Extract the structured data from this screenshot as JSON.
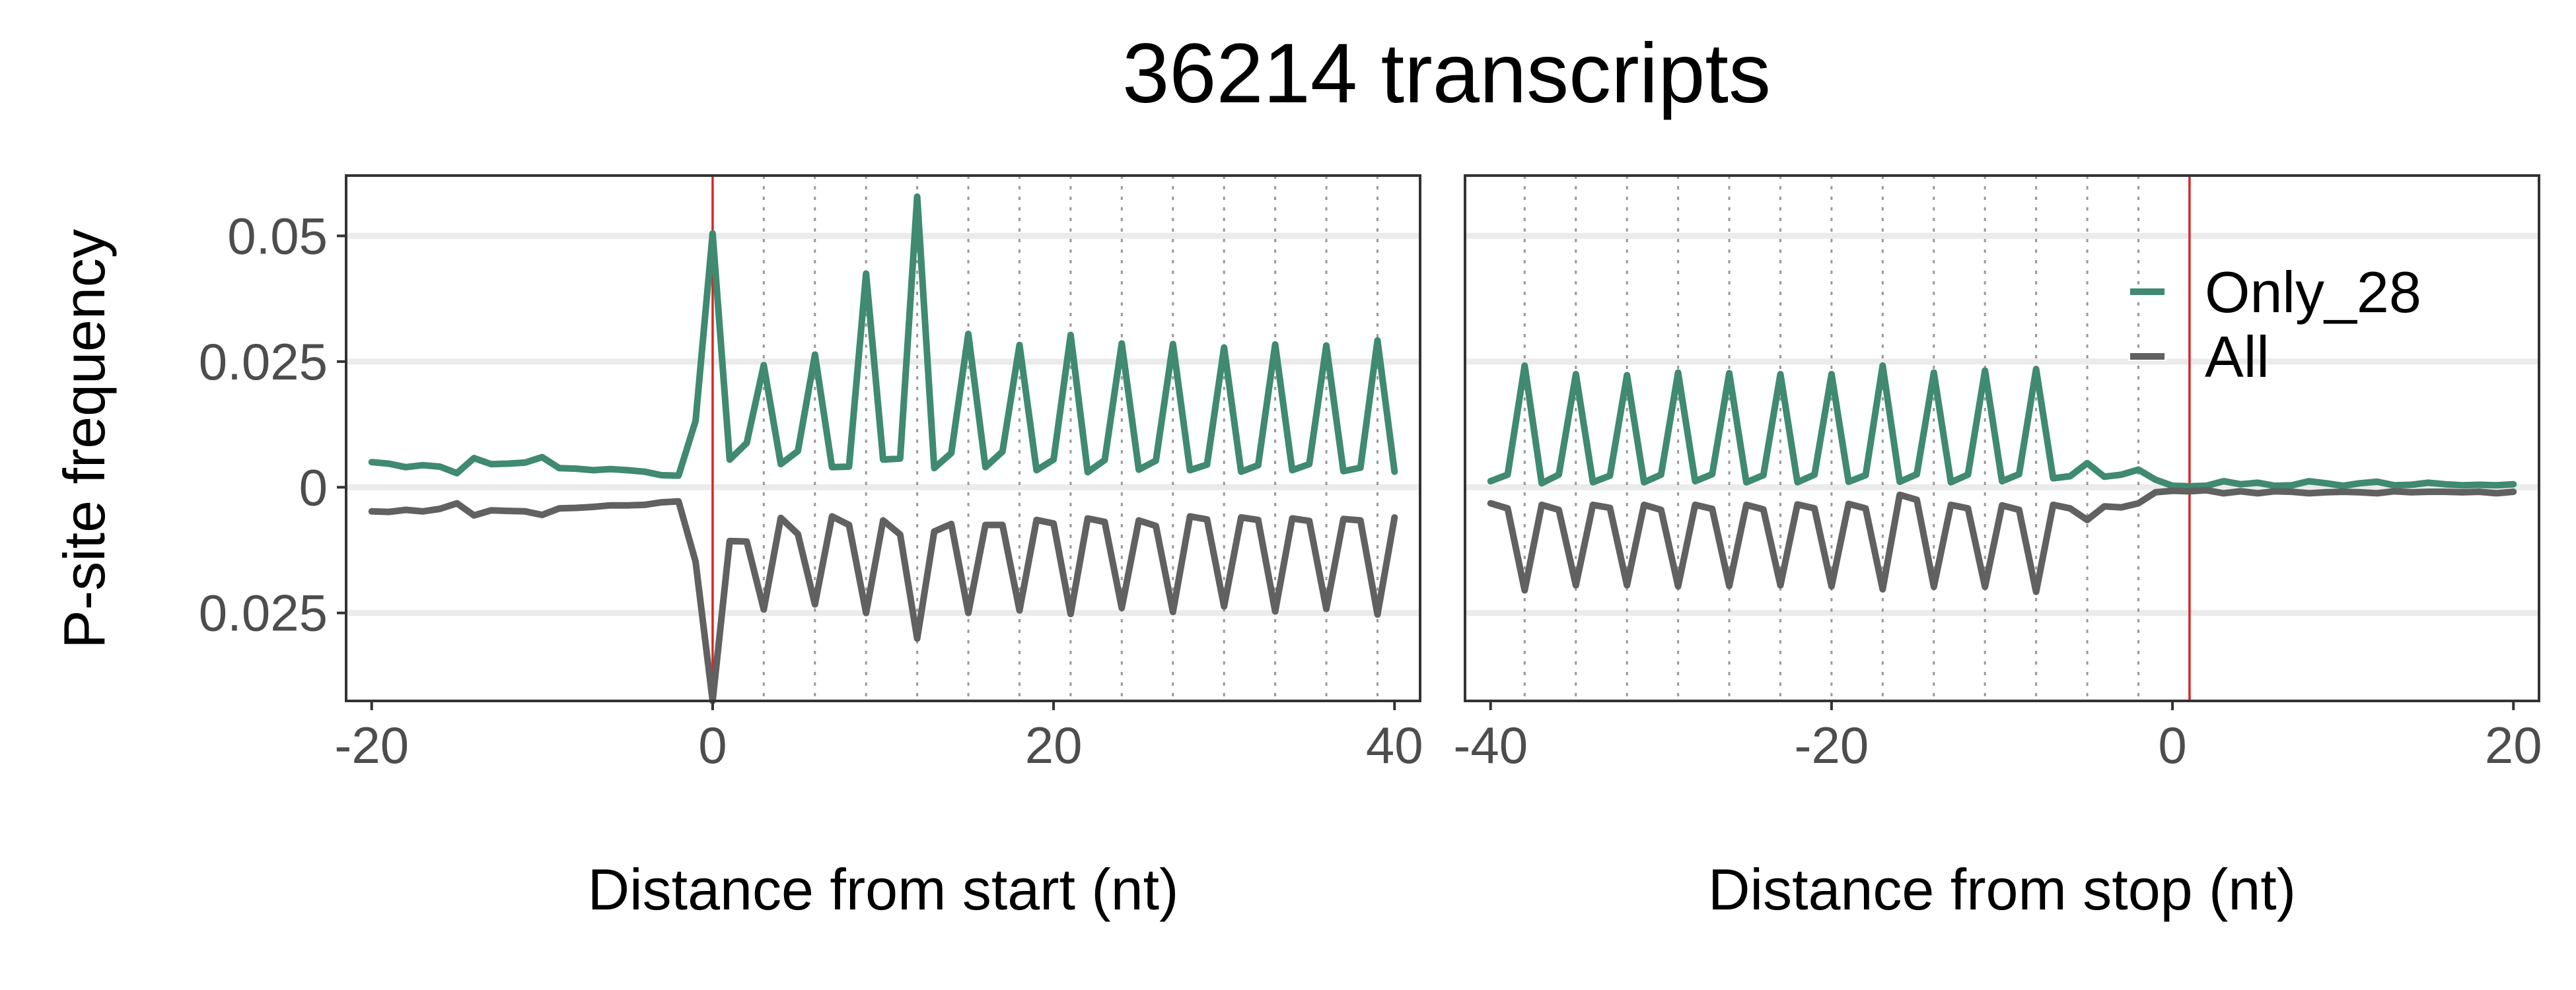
{
  "chart_data": {
    "type": "line",
    "title": "36214 transcripts",
    "ylabel": "P-site frequency",
    "legend": {
      "placement": "top-right",
      "entries": [
        {
          "name": "Only_28",
          "color": "#3f8a70"
        },
        {
          "name": "All",
          "color": "#616161"
        }
      ]
    },
    "grid": true,
    "y": {
      "lim": [
        -0.0425,
        0.062
      ],
      "ticks": [
        0.05,
        0.025,
        0,
        -0.025
      ],
      "tick_labels": [
        "0.05",
        "0.025",
        "0",
        "0.025"
      ]
    },
    "panels": [
      {
        "xlabel": "Distance from start (nt)",
        "xlim": [
          -21.5,
          41.5
        ],
        "xticks": [
          -20,
          0,
          20,
          40
        ],
        "xtick_labels": [
          "-20",
          "0",
          "20",
          "40"
        ],
        "reference_line": 0,
        "codon_lines": [
          3,
          6,
          9,
          12,
          15,
          18,
          21,
          24,
          27,
          30,
          33,
          36,
          39
        ],
        "x": [
          -20,
          -19,
          -18,
          -17,
          -16,
          -15,
          -14,
          -13,
          -12,
          -11,
          -10,
          -9,
          -8,
          -7,
          -6,
          -5,
          -4,
          -3,
          -2,
          -1,
          0,
          1,
          2,
          3,
          4,
          5,
          6,
          7,
          8,
          9,
          10,
          11,
          12,
          13,
          14,
          15,
          16,
          17,
          18,
          19,
          20,
          21,
          22,
          23,
          24,
          25,
          26,
          27,
          28,
          29,
          30,
          31,
          32,
          33,
          34,
          35,
          36,
          37,
          38,
          39,
          40
        ],
        "series": [
          {
            "name": "Only_28",
            "values": [
              0.005,
              0.0047,
              0.004,
              0.0044,
              0.0041,
              0.0028,
              0.0058,
              0.0046,
              0.0047,
              0.0049,
              0.006,
              0.0038,
              0.0037,
              0.0034,
              0.0036,
              0.0034,
              0.0031,
              0.0024,
              0.0023,
              0.0132,
              0.0505,
              0.0055,
              0.0088,
              0.0243,
              0.0046,
              0.0072,
              0.0264,
              0.004,
              0.0041,
              0.0425,
              0.0055,
              0.0057,
              0.0578,
              0.0038,
              0.0068,
              0.0305,
              0.004,
              0.0071,
              0.0283,
              0.0034,
              0.0055,
              0.0303,
              0.003,
              0.0054,
              0.0286,
              0.0035,
              0.0053,
              0.0285,
              0.0034,
              0.0045,
              0.0278,
              0.0031,
              0.0044,
              0.0284,
              0.0034,
              0.0046,
              0.0282,
              0.0032,
              0.0039,
              0.0292,
              0.0031
            ]
          },
          {
            "name": "All",
            "values": [
              -0.0048,
              -0.0049,
              -0.0045,
              -0.0048,
              -0.0043,
              -0.0032,
              -0.0056,
              -0.0046,
              -0.0047,
              -0.0048,
              -0.0055,
              -0.0042,
              -0.0041,
              -0.0039,
              -0.0036,
              -0.0036,
              -0.0035,
              -0.003,
              -0.0028,
              -0.0148,
              -0.0425,
              -0.0107,
              -0.0108,
              -0.0243,
              -0.0061,
              -0.0093,
              -0.0233,
              -0.0058,
              -0.0075,
              -0.025,
              -0.0066,
              -0.0094,
              -0.0301,
              -0.0088,
              -0.0073,
              -0.025,
              -0.0075,
              -0.0075,
              -0.0245,
              -0.0065,
              -0.0072,
              -0.0252,
              -0.0062,
              -0.0069,
              -0.024,
              -0.0066,
              -0.0077,
              -0.0248,
              -0.0058,
              -0.0064,
              -0.0237,
              -0.006,
              -0.0065,
              -0.0247,
              -0.0062,
              -0.0067,
              -0.0242,
              -0.0063,
              -0.0066,
              -0.0253,
              -0.006
            ]
          }
        ]
      },
      {
        "xlabel": "Distance from stop (nt)",
        "xlim": [
          -41.5,
          21.5
        ],
        "xticks": [
          -40,
          -20,
          0,
          20
        ],
        "xtick_labels": [
          "-40",
          "-20",
          "0",
          "20"
        ],
        "reference_line": 1,
        "codon_lines": [
          -38,
          -35,
          -32,
          -29,
          -26,
          -23,
          -20,
          -17,
          -14,
          -11,
          -8,
          -5,
          -2
        ],
        "x": [
          -40,
          -39,
          -38,
          -37,
          -36,
          -35,
          -34,
          -33,
          -32,
          -31,
          -30,
          -29,
          -28,
          -27,
          -26,
          -25,
          -24,
          -23,
          -22,
          -21,
          -20,
          -19,
          -18,
          -17,
          -16,
          -15,
          -14,
          -13,
          -12,
          -11,
          -10,
          -9,
          -8,
          -7,
          -6,
          -5,
          -4,
          -3,
          -2,
          -1,
          0,
          1,
          2,
          3,
          4,
          5,
          6,
          7,
          8,
          9,
          10,
          11,
          12,
          13,
          14,
          15,
          16,
          17,
          18,
          19,
          20
        ],
        "series": [
          {
            "name": "Only_28",
            "values": [
              0.0012,
              0.0025,
              0.0242,
              0.0008,
              0.0025,
              0.0225,
              0.001,
              0.0023,
              0.0223,
              0.001,
              0.0025,
              0.0228,
              0.0012,
              0.0026,
              0.0227,
              0.001,
              0.0024,
              0.0225,
              0.001,
              0.0025,
              0.0225,
              0.0011,
              0.0024,
              0.0242,
              0.0011,
              0.0026,
              0.0228,
              0.001,
              0.0025,
              0.0232,
              0.0012,
              0.0026,
              0.0235,
              0.0018,
              0.0022,
              0.0048,
              0.0021,
              0.0025,
              0.0035,
              0.0015,
              0.0003,
              0.0002,
              0.0003,
              0.0012,
              0.0006,
              0.0009,
              0.0003,
              0.0004,
              0.0012,
              0.0008,
              0.0003,
              0.0008,
              0.0011,
              0.0004,
              0.0005,
              0.0009,
              0.0006,
              0.0004,
              0.0005,
              0.0004,
              0.0006
            ]
          },
          {
            "name": "All",
            "values": [
              -0.0032,
              -0.0042,
              -0.0205,
              -0.0035,
              -0.0045,
              -0.0195,
              -0.0035,
              -0.0041,
              -0.0195,
              -0.0035,
              -0.0045,
              -0.0197,
              -0.0035,
              -0.0043,
              -0.0196,
              -0.0035,
              -0.0044,
              -0.0195,
              -0.0034,
              -0.0042,
              -0.0197,
              -0.0033,
              -0.0042,
              -0.0203,
              -0.0015,
              -0.0025,
              -0.0198,
              -0.0035,
              -0.0042,
              -0.0198,
              -0.0036,
              -0.0045,
              -0.0208,
              -0.0035,
              -0.0042,
              -0.0065,
              -0.0038,
              -0.004,
              -0.0032,
              -0.001,
              -0.0007,
              -0.0008,
              -0.0006,
              -0.0012,
              -0.0008,
              -0.0012,
              -0.0008,
              -0.0009,
              -0.0012,
              -0.001,
              -0.0009,
              -0.001,
              -0.0012,
              -0.0008,
              -0.001,
              -0.0009,
              -0.0009,
              -0.001,
              -0.0009,
              -0.0012,
              -0.0009
            ]
          }
        ]
      }
    ]
  }
}
